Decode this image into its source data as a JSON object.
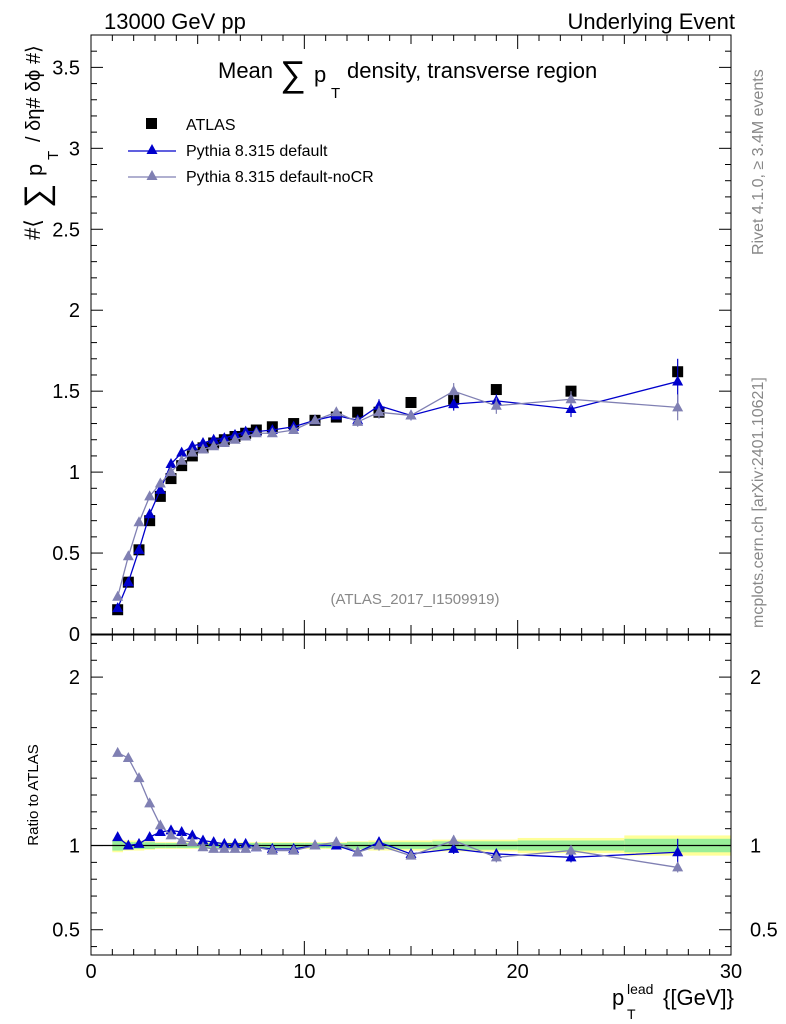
{
  "header": {
    "left": "13000 GeV pp",
    "right": "Underlying Event",
    "title_pre": "Mean",
    "title_sigma": "∑",
    "title_p": "p",
    "title_sub": "T",
    "title_post": "density, transverse region"
  },
  "side": {
    "rivet": "Rivet 4.1.0, ≥ 3.4M events",
    "mcplots": "mcplots.cern.ch [arXiv:2401.10621]"
  },
  "analysis_label": "(ATLAS_2017_I1509919)",
  "colors": {
    "atlas": "#000000",
    "default": "#0000cc",
    "nocr": "#8080b3",
    "band_inner": "#99ee99",
    "band_outer": "#ffff99"
  },
  "chart_data": [
    {
      "type": "scatter",
      "panel": "main",
      "ylabel": {
        "hash1": "#⟨",
        "sigma": "∑",
        "p": "p",
        "sub": "T",
        "rest": "/ δη# δϕ #⟩"
      },
      "xlim": [
        0,
        30
      ],
      "ylim": [
        0,
        3.7
      ],
      "yticks": [
        0,
        0.5,
        1,
        1.5,
        2,
        2.5,
        3,
        3.5
      ],
      "ytick_labels": [
        "0",
        "0.5",
        "1",
        "1.5",
        "2",
        "2.5",
        "3",
        "3.5"
      ],
      "x": [
        1.25,
        1.75,
        2.25,
        2.75,
        3.25,
        3.75,
        4.25,
        4.75,
        5.25,
        5.75,
        6.25,
        6.75,
        7.25,
        7.75,
        8.5,
        9.5,
        10.5,
        11.5,
        12.5,
        13.5,
        15,
        17,
        19,
        22.5,
        27.5
      ],
      "series": [
        {
          "name": "ATLAS",
          "marker": "square",
          "values": [
            0.15,
            0.32,
            0.52,
            0.7,
            0.85,
            0.96,
            1.04,
            1.1,
            1.15,
            1.18,
            1.2,
            1.22,
            1.24,
            1.26,
            1.28,
            1.3,
            1.32,
            1.34,
            1.37,
            1.37,
            1.43,
            1.45,
            1.51,
            1.5,
            1.62
          ]
        },
        {
          "name": "Pythia 8.315 default",
          "marker": "triangle",
          "values": [
            0.16,
            0.32,
            0.52,
            0.74,
            0.89,
            1.05,
            1.12,
            1.16,
            1.18,
            1.2,
            1.21,
            1.23,
            1.25,
            1.25,
            1.26,
            1.28,
            1.32,
            1.35,
            1.32,
            1.41,
            1.35,
            1.42,
            1.44,
            1.39,
            1.56
          ],
          "errors": [
            0,
            0,
            0,
            0,
            0,
            0,
            0,
            0,
            0,
            0,
            0,
            0,
            0,
            0,
            0,
            0,
            0,
            0,
            0.03,
            0.04,
            0.03,
            0.04,
            0.04,
            0.05,
            0.14
          ]
        },
        {
          "name": "Pythia 8.315 default-noCR",
          "marker": "triangle",
          "values": [
            0.23,
            0.48,
            0.69,
            0.85,
            0.93,
            1.0,
            1.07,
            1.12,
            1.14,
            1.16,
            1.18,
            1.2,
            1.22,
            1.24,
            1.24,
            1.26,
            1.32,
            1.37,
            1.31,
            1.37,
            1.35,
            1.5,
            1.41,
            1.45,
            1.4
          ],
          "errors": [
            0,
            0,
            0,
            0,
            0,
            0,
            0,
            0,
            0,
            0,
            0,
            0,
            0,
            0,
            0,
            0,
            0,
            0,
            0.03,
            0.04,
            0.03,
            0.05,
            0.05,
            0.05,
            0.08
          ]
        }
      ]
    },
    {
      "type": "scatter",
      "panel": "ratio",
      "ylabel": "Ratio to ATLAS",
      "xlabel": {
        "p": "p",
        "sub": "T",
        "sup": "lead",
        "unit": "{[GeV]}"
      },
      "xlim": [
        0,
        30
      ],
      "ylim": [
        0.35,
        2.25
      ],
      "xticks": [
        0,
        10,
        20,
        30
      ],
      "xtick_labels": [
        "0",
        "10",
        "20",
        "30"
      ],
      "yticks": [
        0.5,
        1,
        2
      ],
      "ytick_labels": [
        "0.5",
        "1",
        "2"
      ],
      "x": [
        1.25,
        1.75,
        2.25,
        2.75,
        3.25,
        3.75,
        4.25,
        4.75,
        5.25,
        5.75,
        6.25,
        6.75,
        7.25,
        7.75,
        8.5,
        9.5,
        10.5,
        11.5,
        12.5,
        13.5,
        15,
        17,
        19,
        22.5,
        27.5
      ],
      "x_low": [
        1,
        1.5,
        2,
        2.5,
        3,
        3.5,
        4,
        4.5,
        5,
        5.5,
        6,
        6.5,
        7,
        7.5,
        8,
        9,
        10,
        11,
        12,
        13,
        14,
        16,
        18,
        20,
        25
      ],
      "x_high": [
        1.5,
        2,
        2.5,
        3,
        3.5,
        4,
        4.5,
        5,
        5.5,
        6,
        6.5,
        7,
        7.5,
        8,
        9,
        10,
        11,
        12,
        13,
        14,
        16,
        18,
        20,
        25,
        30
      ],
      "band_inner": [
        0.03,
        0.02,
        0.02,
        0.02,
        0.015,
        0.015,
        0.015,
        0.015,
        0.015,
        0.015,
        0.015,
        0.015,
        0.015,
        0.015,
        0.015,
        0.015,
        0.015,
        0.015,
        0.02,
        0.02,
        0.02,
        0.025,
        0.025,
        0.03,
        0.04
      ],
      "band_outer": [
        0.04,
        0.03,
        0.03,
        0.025,
        0.02,
        0.02,
        0.02,
        0.02,
        0.02,
        0.02,
        0.02,
        0.02,
        0.02,
        0.02,
        0.02,
        0.02,
        0.02,
        0.02,
        0.025,
        0.03,
        0.03,
        0.035,
        0.035,
        0.045,
        0.06
      ],
      "series": [
        {
          "name": "Pythia 8.315 default",
          "values": [
            1.05,
            1.0,
            1.01,
            1.05,
            1.08,
            1.09,
            1.08,
            1.06,
            1.03,
            1.02,
            1.01,
            1.01,
            1.01,
            0.99,
            0.98,
            0.98,
            1.0,
            1.0,
            0.96,
            1.02,
            0.95,
            0.98,
            0.95,
            0.93,
            0.96
          ],
          "errors": [
            0,
            0,
            0,
            0,
            0,
            0,
            0,
            0,
            0,
            0,
            0,
            0,
            0,
            0,
            0,
            0,
            0,
            0,
            0.02,
            0.03,
            0.02,
            0.03,
            0.03,
            0.03,
            0.08
          ]
        },
        {
          "name": "Pythia 8.315 default-noCR",
          "values": [
            1.55,
            1.52,
            1.4,
            1.25,
            1.12,
            1.06,
            1.03,
            1.02,
            0.99,
            0.98,
            0.98,
            0.98,
            0.98,
            0.99,
            0.97,
            0.97,
            1.0,
            1.02,
            0.96,
            1.0,
            0.94,
            1.03,
            0.93,
            0.97,
            0.87
          ],
          "errors": [
            0,
            0,
            0,
            0,
            0,
            0,
            0,
            0,
            0,
            0,
            0,
            0,
            0,
            0,
            0,
            0,
            0,
            0,
            0.02,
            0.03,
            0.02,
            0.03,
            0.03,
            0.03,
            0.03
          ]
        }
      ]
    }
  ]
}
